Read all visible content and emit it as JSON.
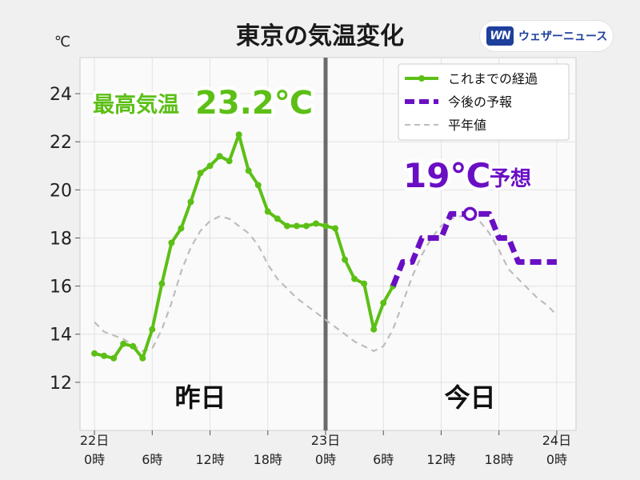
{
  "header": {
    "title": "東京の気温変化",
    "brand_logo_text": "WN",
    "brand_name": "ウェザーニュース"
  },
  "chart_data": {
    "type": "line",
    "y_unit": "℃",
    "ylim": [
      10,
      25.5
    ],
    "y_ticks": [
      "12",
      "14",
      "16",
      "18",
      "20",
      "22",
      "24"
    ],
    "x_range_hours": [
      -1.5,
      50
    ],
    "x_ticks": [
      {
        "hour": 0,
        "line1": "22日",
        "line2": "0時"
      },
      {
        "hour": 6,
        "line1": "",
        "line2": "6時"
      },
      {
        "hour": 12,
        "line1": "",
        "line2": "12時"
      },
      {
        "hour": 18,
        "line1": "",
        "line2": "18時"
      },
      {
        "hour": 24,
        "line1": "23日",
        "line2": "0時"
      },
      {
        "hour": 30,
        "line1": "",
        "line2": "6時"
      },
      {
        "hour": 36,
        "line1": "",
        "line2": "12時"
      },
      {
        "hour": 42,
        "line1": "",
        "line2": "18時"
      },
      {
        "hour": 48,
        "line1": "24日",
        "line2": "0時"
      }
    ],
    "day_divider_hour": 24,
    "day_labels": [
      {
        "hour": 11,
        "text": "昨日"
      },
      {
        "hour": 39,
        "text": "今日"
      }
    ],
    "series": [
      {
        "name": "これまでの経過",
        "color": "#5cbf16",
        "style": "solid-markers",
        "points": [
          [
            0,
            13.2
          ],
          [
            1,
            13.1
          ],
          [
            2,
            13.0
          ],
          [
            3,
            13.6
          ],
          [
            4,
            13.5
          ],
          [
            5,
            13.0
          ],
          [
            6,
            14.2
          ],
          [
            7,
            16.1
          ],
          [
            8,
            17.8
          ],
          [
            9,
            18.4
          ],
          [
            10,
            19.5
          ],
          [
            11,
            20.7
          ],
          [
            12,
            21.0
          ],
          [
            13,
            21.4
          ],
          [
            14,
            21.2
          ],
          [
            15,
            22.3
          ],
          [
            16,
            20.8
          ],
          [
            17,
            20.2
          ],
          [
            18,
            19.1
          ],
          [
            19,
            18.8
          ],
          [
            20,
            18.5
          ],
          [
            21,
            18.5
          ],
          [
            22,
            18.5
          ],
          [
            23,
            18.6
          ],
          [
            24,
            18.5
          ],
          [
            25,
            18.4
          ],
          [
            26,
            17.1
          ],
          [
            27,
            16.3
          ],
          [
            28,
            16.1
          ],
          [
            29,
            14.2
          ],
          [
            30,
            15.3
          ],
          [
            31,
            16.0
          ]
        ]
      },
      {
        "name": "今後の予報",
        "color": "#6a0fc4",
        "style": "dashed-step",
        "points": [
          [
            31,
            16.0
          ],
          [
            32,
            17.0
          ],
          [
            33,
            17.0
          ],
          [
            34,
            18.0
          ],
          [
            35,
            18.0
          ],
          [
            36,
            18.0
          ],
          [
            37,
            19.0
          ],
          [
            38,
            19.0
          ],
          [
            39,
            19.0
          ],
          [
            40,
            19.0
          ],
          [
            41,
            19.0
          ],
          [
            42,
            18.0
          ],
          [
            43,
            18.0
          ],
          [
            44,
            17.0
          ],
          [
            45,
            17.0
          ],
          [
            46,
            17.0
          ],
          [
            47,
            17.0
          ],
          [
            48,
            17.0
          ]
        ],
        "marker_hour": 39,
        "marker_value": 19.0
      },
      {
        "name": "平年値",
        "color": "#bdbdbd",
        "style": "dashed",
        "points": [
          [
            0,
            14.5
          ],
          [
            1,
            14.1
          ],
          [
            3,
            13.8
          ],
          [
            5,
            13.3
          ],
          [
            6,
            13.4
          ],
          [
            7,
            14.2
          ],
          [
            8,
            15.3
          ],
          [
            9,
            16.6
          ],
          [
            10,
            17.6
          ],
          [
            11,
            18.3
          ],
          [
            12,
            18.7
          ],
          [
            13,
            18.9
          ],
          [
            14,
            18.8
          ],
          [
            15,
            18.5
          ],
          [
            16,
            18.2
          ],
          [
            17,
            17.7
          ],
          [
            18,
            16.9
          ],
          [
            19,
            16.3
          ],
          [
            20,
            15.9
          ],
          [
            21,
            15.5
          ],
          [
            22,
            15.2
          ],
          [
            23,
            14.9
          ],
          [
            24,
            14.6
          ],
          [
            25,
            14.3
          ],
          [
            26,
            14.0
          ],
          [
            27,
            13.7
          ],
          [
            28,
            13.5
          ],
          [
            29,
            13.3
          ],
          [
            30,
            13.5
          ],
          [
            31,
            14.2
          ],
          [
            32,
            15.3
          ],
          [
            33,
            16.4
          ],
          [
            34,
            17.3
          ],
          [
            35,
            18.0
          ],
          [
            36,
            18.5
          ],
          [
            37,
            18.8
          ],
          [
            38,
            18.9
          ],
          [
            39,
            18.9
          ],
          [
            40,
            18.7
          ],
          [
            41,
            18.2
          ],
          [
            42,
            17.5
          ],
          [
            43,
            16.7
          ],
          [
            44,
            16.3
          ],
          [
            45,
            15.9
          ],
          [
            46,
            15.5
          ],
          [
            47,
            15.2
          ],
          [
            48,
            14.8
          ]
        ]
      }
    ],
    "annotations": {
      "max_label": "最高気温",
      "max_value": "23.2℃",
      "forecast_value": "19℃",
      "forecast_label": "予想"
    },
    "legend_position": "top-right",
    "grid": true
  }
}
